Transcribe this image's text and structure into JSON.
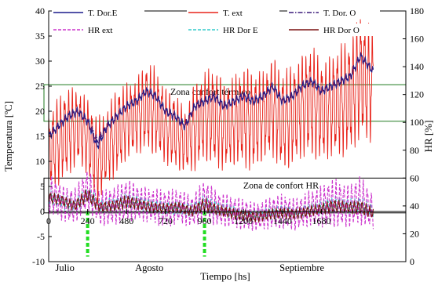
{
  "chart_data": {
    "type": "line",
    "xlabel": "Tiempo [hs]",
    "ylabel": "Temperatura [ºC]",
    "y2label": "HR [%]",
    "xlim": [
      0,
      2200
    ],
    "ylim": [
      -10,
      40
    ],
    "y2lim": [
      0,
      180
    ],
    "xticks": [
      0,
      240,
      480,
      720,
      960,
      1200,
      1440,
      1680
    ],
    "yticks": [
      -10,
      -5,
      0,
      5,
      10,
      15,
      20,
      25,
      30,
      35,
      40
    ],
    "y2ticks": [
      0,
      20,
      40,
      60,
      80,
      100,
      120,
      140,
      160,
      180
    ],
    "month_labels": [
      {
        "label": "Julio",
        "x": 100
      },
      {
        "label": "Agosto",
        "x": 620
      },
      {
        "label": "Septiembre",
        "x": 1560
      }
    ],
    "zones": [
      {
        "label": "Zona confort térmico",
        "axis": "left",
        "ymin": 18,
        "ymax": 25.3
      },
      {
        "label": "Zona de confort HR",
        "axis": "right",
        "ymin": 35,
        "ymax": 60
      }
    ],
    "markers_x": [
      240,
      960
    ],
    "marker_range": [
      -9,
      0
    ],
    "series": [
      {
        "name": "T. Dor.E",
        "axis": "left",
        "color": "#1a1a8c",
        "style": "solid",
        "x": [
          0,
          60,
          120,
          180,
          240,
          300,
          360,
          420,
          480,
          540,
          600,
          660,
          720,
          780,
          840,
          900,
          960,
          1020,
          1080,
          1140,
          1200,
          1260,
          1320,
          1380,
          1440,
          1500,
          1560,
          1620,
          1680,
          1740,
          1800,
          1860,
          1920,
          2000
        ],
        "y": [
          15,
          17,
          19,
          20,
          18,
          13,
          17,
          19,
          21,
          22,
          24,
          23,
          20,
          19,
          17,
          21,
          22,
          23,
          21,
          22,
          23,
          22,
          23,
          25,
          22,
          23,
          25,
          26,
          24,
          25,
          26,
          27,
          31,
          28
        ]
      },
      {
        "name": "T. ext",
        "axis": "left",
        "color": "#e8231a",
        "style": "solid",
        "x": [
          0,
          60,
          120,
          180,
          240,
          300,
          360,
          420,
          480,
          540,
          600,
          660,
          720,
          780,
          840,
          900,
          960,
          1020,
          1080,
          1140,
          1200,
          1260,
          1320,
          1380,
          1440,
          1500,
          1560,
          1620,
          1680,
          1740,
          1800,
          1860,
          1920,
          2000
        ],
        "y": [
          12,
          14,
          16,
          17,
          15,
          10,
          13,
          16,
          18,
          19,
          21,
          20,
          17,
          16,
          14,
          17,
          19,
          19,
          17,
          18,
          19,
          18,
          19,
          21,
          18,
          19,
          21,
          22,
          20,
          21,
          22,
          23,
          27,
          25
        ],
        "amp": [
          6,
          7,
          7,
          6,
          6,
          7,
          6,
          7,
          6,
          6,
          7,
          7,
          6,
          6,
          5,
          7,
          7,
          8,
          7,
          7,
          8,
          8,
          7,
          8,
          8,
          8,
          8,
          9,
          8,
          8,
          9,
          9,
          10,
          9
        ]
      },
      {
        "name": "T. Dor. O",
        "axis": "left",
        "color": "#3a1a7a",
        "style": "dashdot",
        "x": [
          0,
          60,
          120,
          180,
          240,
          300,
          360,
          420,
          480,
          540,
          600,
          660,
          720,
          780,
          840,
          900,
          960,
          1020,
          1080,
          1140,
          1200,
          1260,
          1320,
          1380,
          1440,
          1500,
          1560,
          1620,
          1680,
          1740,
          1800,
          1860,
          1920,
          2000
        ],
        "y": [
          15,
          17,
          19,
          20,
          18,
          14,
          17,
          19,
          21,
          22,
          24,
          23,
          20,
          19,
          17,
          21,
          22,
          23,
          21,
          22,
          23,
          22,
          23,
          25,
          22,
          23,
          25,
          26,
          24,
          25,
          26,
          27,
          31,
          28
        ]
      },
      {
        "name": "HR ext",
        "axis": "right",
        "color": "#cc33cc",
        "style": "dashed",
        "x": [
          0,
          80,
          160,
          240,
          320,
          400,
          480,
          560,
          640,
          720,
          800,
          880,
          960,
          1040,
          1120,
          1200,
          1280,
          1360,
          1440,
          1520,
          1600,
          1680,
          1760,
          1840,
          1920,
          2000
        ],
        "y": [
          50,
          42,
          40,
          52,
          38,
          40,
          44,
          42,
          40,
          38,
          40,
          36,
          44,
          38,
          36,
          34,
          32,
          35,
          36,
          34,
          38,
          40,
          42,
          40,
          44,
          36
        ],
        "amp": [
          12,
          10,
          10,
          12,
          10,
          11,
          12,
          10,
          10,
          11,
          10,
          9,
          12,
          10,
          9,
          9,
          8,
          9,
          10,
          9,
          10,
          12,
          14,
          12,
          14,
          10
        ]
      },
      {
        "name": "HR Dor E",
        "axis": "right",
        "color": "#33cccc",
        "style": "dashed",
        "x": [
          0,
          80,
          160,
          240,
          320,
          400,
          480,
          560,
          640,
          720,
          800,
          880,
          960,
          1040,
          1120,
          1200,
          1280,
          1360,
          1440,
          1520,
          1600,
          1680,
          1760,
          1840,
          1920,
          2000
        ],
        "y": [
          46,
          43,
          40,
          48,
          40,
          41,
          44,
          42,
          40,
          38,
          39,
          37,
          42,
          38,
          36,
          34,
          33,
          35,
          36,
          35,
          37,
          39,
          41,
          40,
          40,
          36
        ],
        "amp": [
          4,
          4,
          4,
          5,
          4,
          4,
          5,
          4,
          4,
          4,
          4,
          4,
          5,
          4,
          4,
          3,
          3,
          4,
          4,
          3,
          4,
          4,
          5,
          4,
          5,
          4
        ]
      },
      {
        "name": "HR Dor O",
        "axis": "right",
        "color": "#7a1010",
        "style": "solid",
        "x": [
          0,
          80,
          160,
          240,
          320,
          400,
          480,
          560,
          640,
          720,
          800,
          880,
          960,
          1040,
          1120,
          1200,
          1280,
          1360,
          1440,
          1520,
          1600,
          1680,
          1760,
          1840,
          1920,
          2000
        ],
        "y": [
          46,
          44,
          40,
          48,
          39,
          40,
          43,
          41,
          39,
          38,
          39,
          36,
          41,
          37,
          35,
          33,
          32,
          34,
          35,
          34,
          36,
          38,
          40,
          39,
          39,
          35
        ],
        "amp": [
          3,
          3,
          3,
          4,
          3,
          3,
          4,
          3,
          3,
          3,
          3,
          3,
          4,
          3,
          3,
          3,
          3,
          3,
          3,
          3,
          3,
          3,
          4,
          3,
          4,
          3
        ]
      }
    ]
  }
}
